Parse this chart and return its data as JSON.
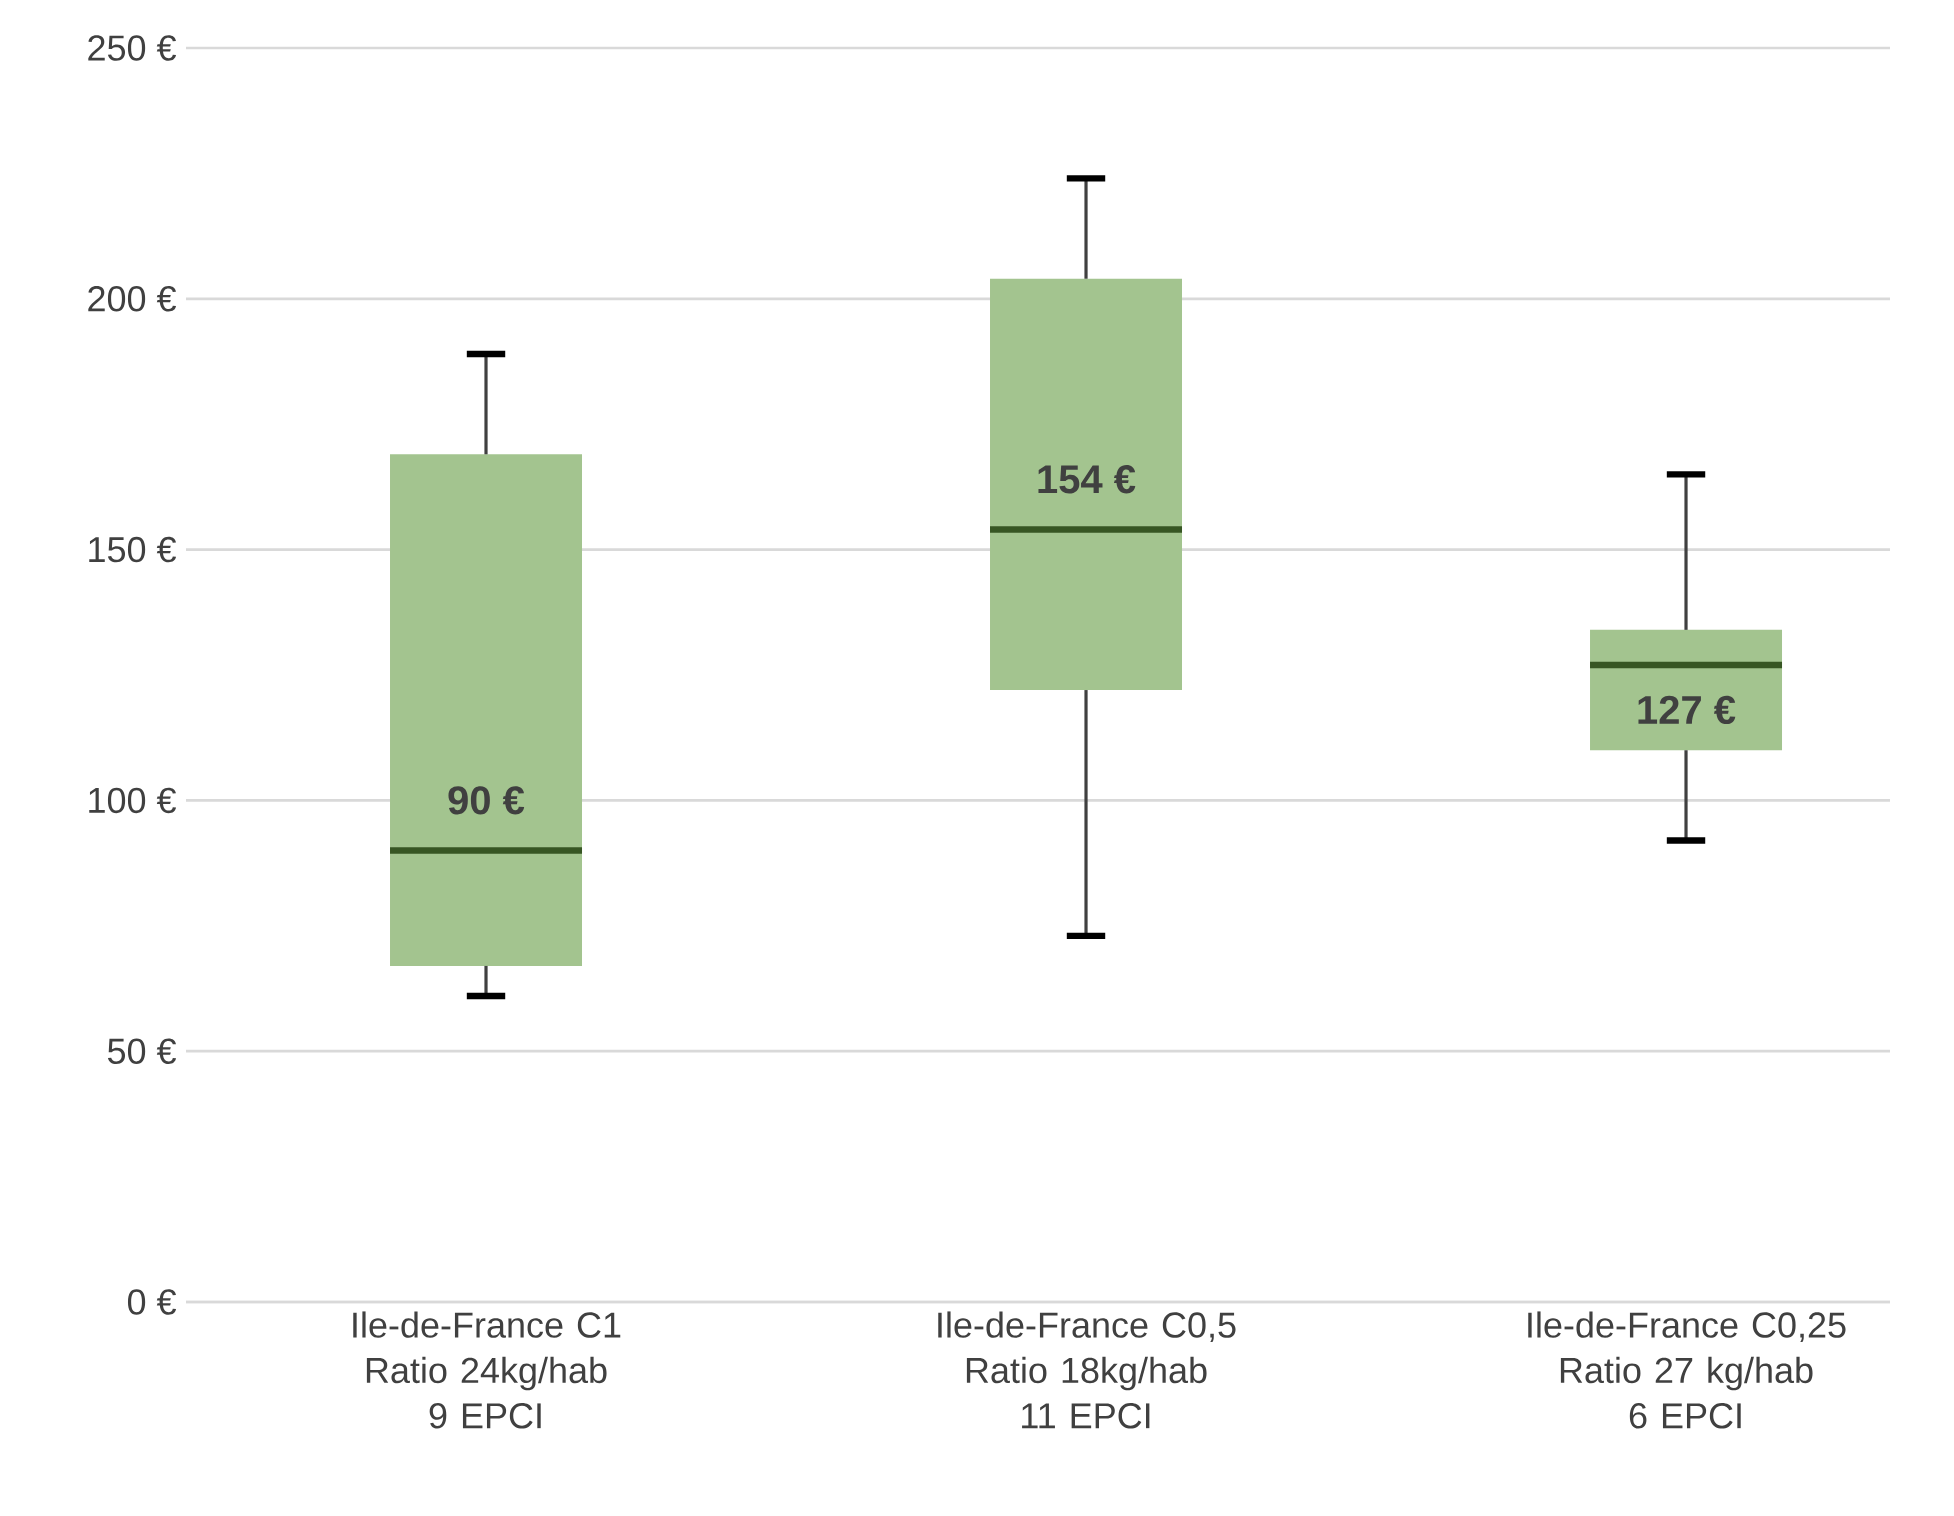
{
  "chart_data": {
    "type": "box",
    "categories": [
      "Ile-de-France C1\nRatio 24kg/hab\n9 EPCI",
      "Ile-de-France C0,5\nRatio 18kg/hab\n11 EPCI",
      "Ile-de-France C0,25\nRatio 27 kg/hab\n6 EPCI"
    ],
    "boxes": [
      {
        "low": 61,
        "q1": 67,
        "median": 90,
        "q3": 169,
        "high": 189
      },
      {
        "low": 73,
        "q1": 122,
        "median": 154,
        "q3": 204,
        "high": 224
      },
      {
        "low": 92,
        "q1": 110,
        "median": 127,
        "q3": 134,
        "high": 165
      }
    ],
    "value_labels": [
      "90 €",
      "154 €",
      "127 €"
    ],
    "color": "#a3c48f",
    "ylim": [
      0,
      250
    ],
    "yticks": [
      {
        "value": 0,
        "label": "0 €"
      },
      {
        "value": 50,
        "label": "50 €"
      },
      {
        "value": 100,
        "label": "100 €"
      },
      {
        "value": 150,
        "label": "150 €"
      },
      {
        "value": 200,
        "label": "200 €"
      },
      {
        "value": 250,
        "label": "250 €"
      }
    ],
    "grid": "y"
  }
}
